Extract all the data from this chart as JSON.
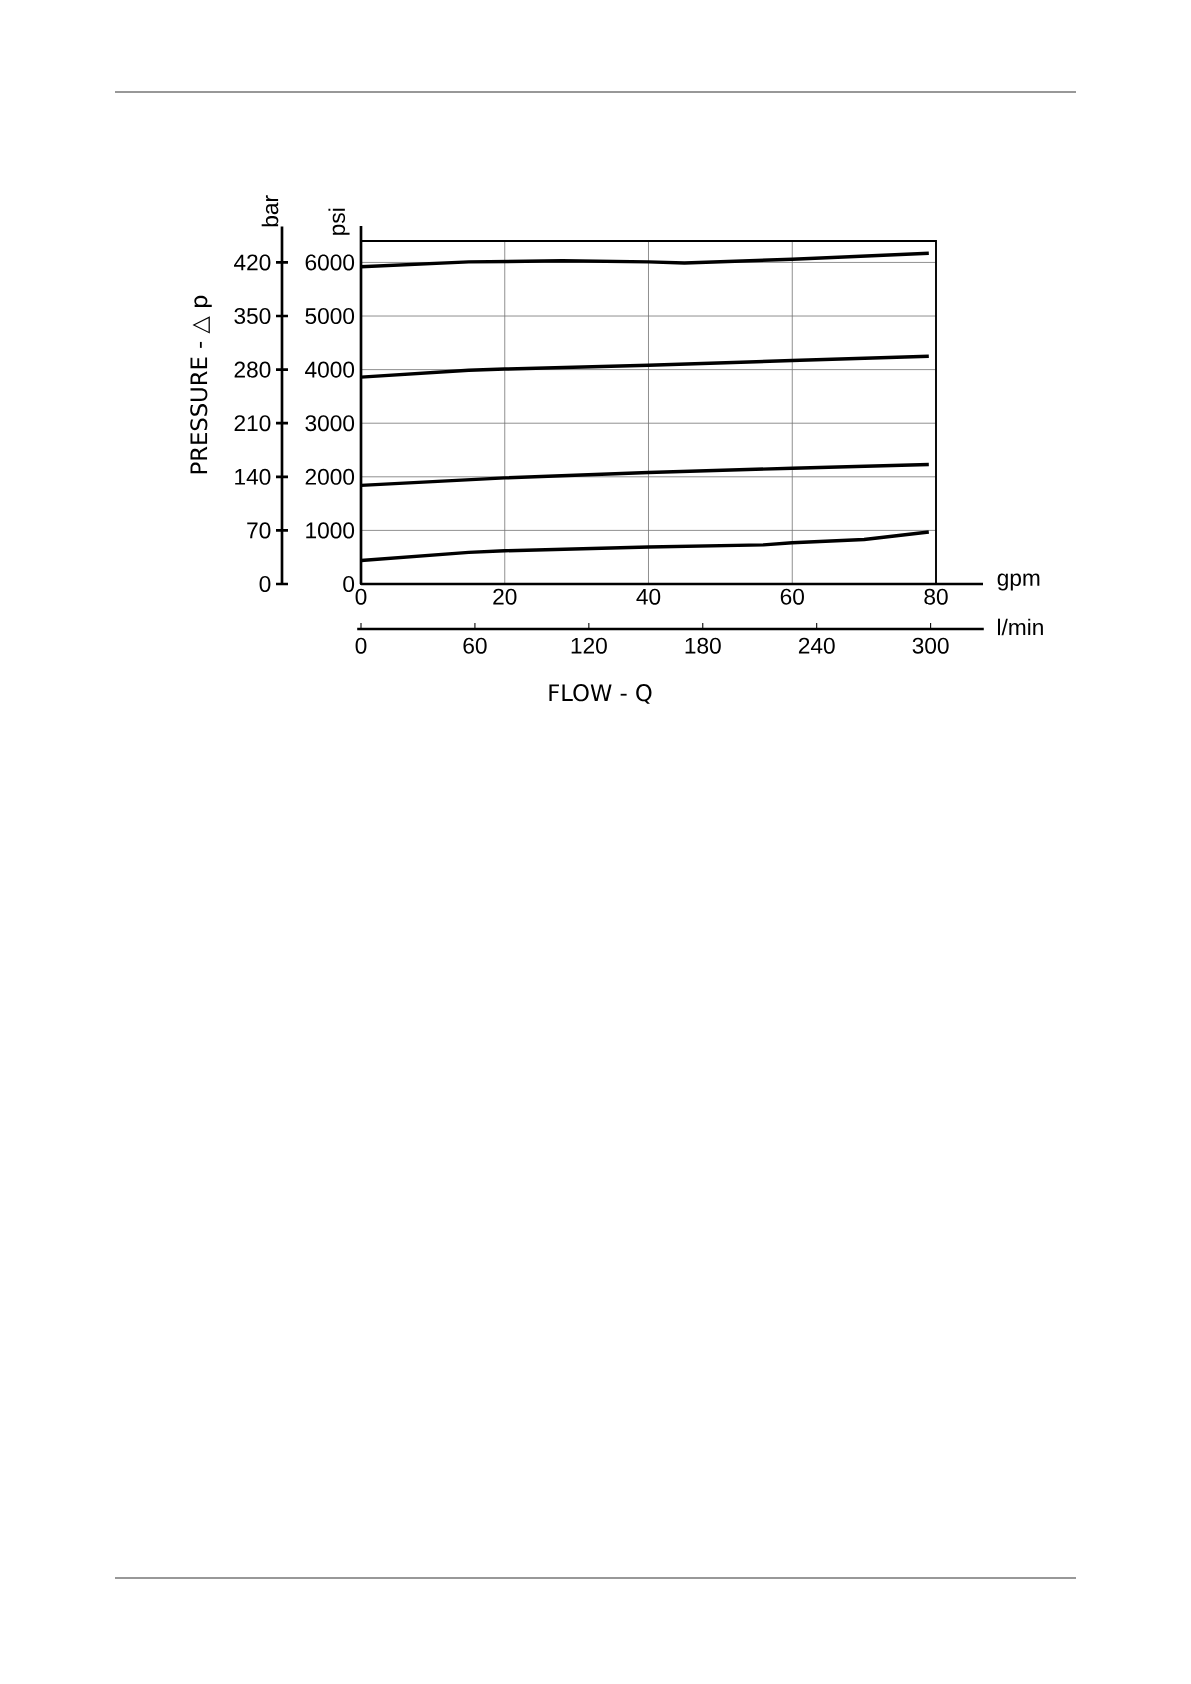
{
  "chart_data": {
    "type": "line",
    "xlabel": "gpm",
    "x2label": "l/min",
    "ylabel": "psi",
    "y2label": "bar",
    "annotations": [
      "PRESSURE - △ p",
      "FLOW - Q"
    ],
    "xlim": [
      0,
      80
    ],
    "xticks": [
      0,
      20,
      40,
      60,
      80
    ],
    "x2lim": [
      -2,
      328
    ],
    "x2ticks": [
      0,
      60,
      120,
      180,
      240,
      300
    ],
    "ylim": [
      0,
      6400
    ],
    "yticks": [
      0,
      1000,
      2000,
      3000,
      4000,
      5000,
      6000
    ],
    "y2lim": [
      0,
      467
    ],
    "y2ticks": [
      0,
      70,
      140,
      210,
      280,
      350,
      420
    ],
    "grid": true,
    "line_style": "solid",
    "marker": "none",
    "series": [
      {
        "color": "#000000",
        "x": [
          0,
          15,
          28,
          40,
          45,
          60,
          79
        ],
        "values": [
          5920,
          6010,
          6030,
          6010,
          5990,
          6060,
          6170
        ]
      },
      {
        "color": "#000000",
        "x": [
          0,
          15,
          20,
          40,
          60,
          79
        ],
        "values": [
          3860,
          3990,
          4010,
          4080,
          4170,
          4250
        ]
      },
      {
        "color": "#000000",
        "x": [
          0,
          20,
          40,
          60,
          79
        ],
        "values": [
          1840,
          1980,
          2080,
          2160,
          2230
        ]
      },
      {
        "color": "#000000",
        "x": [
          0,
          15,
          20,
          40,
          56,
          60,
          70,
          79
        ],
        "values": [
          440,
          590,
          620,
          690,
          730,
          770,
          830,
          970
        ]
      }
    ]
  }
}
